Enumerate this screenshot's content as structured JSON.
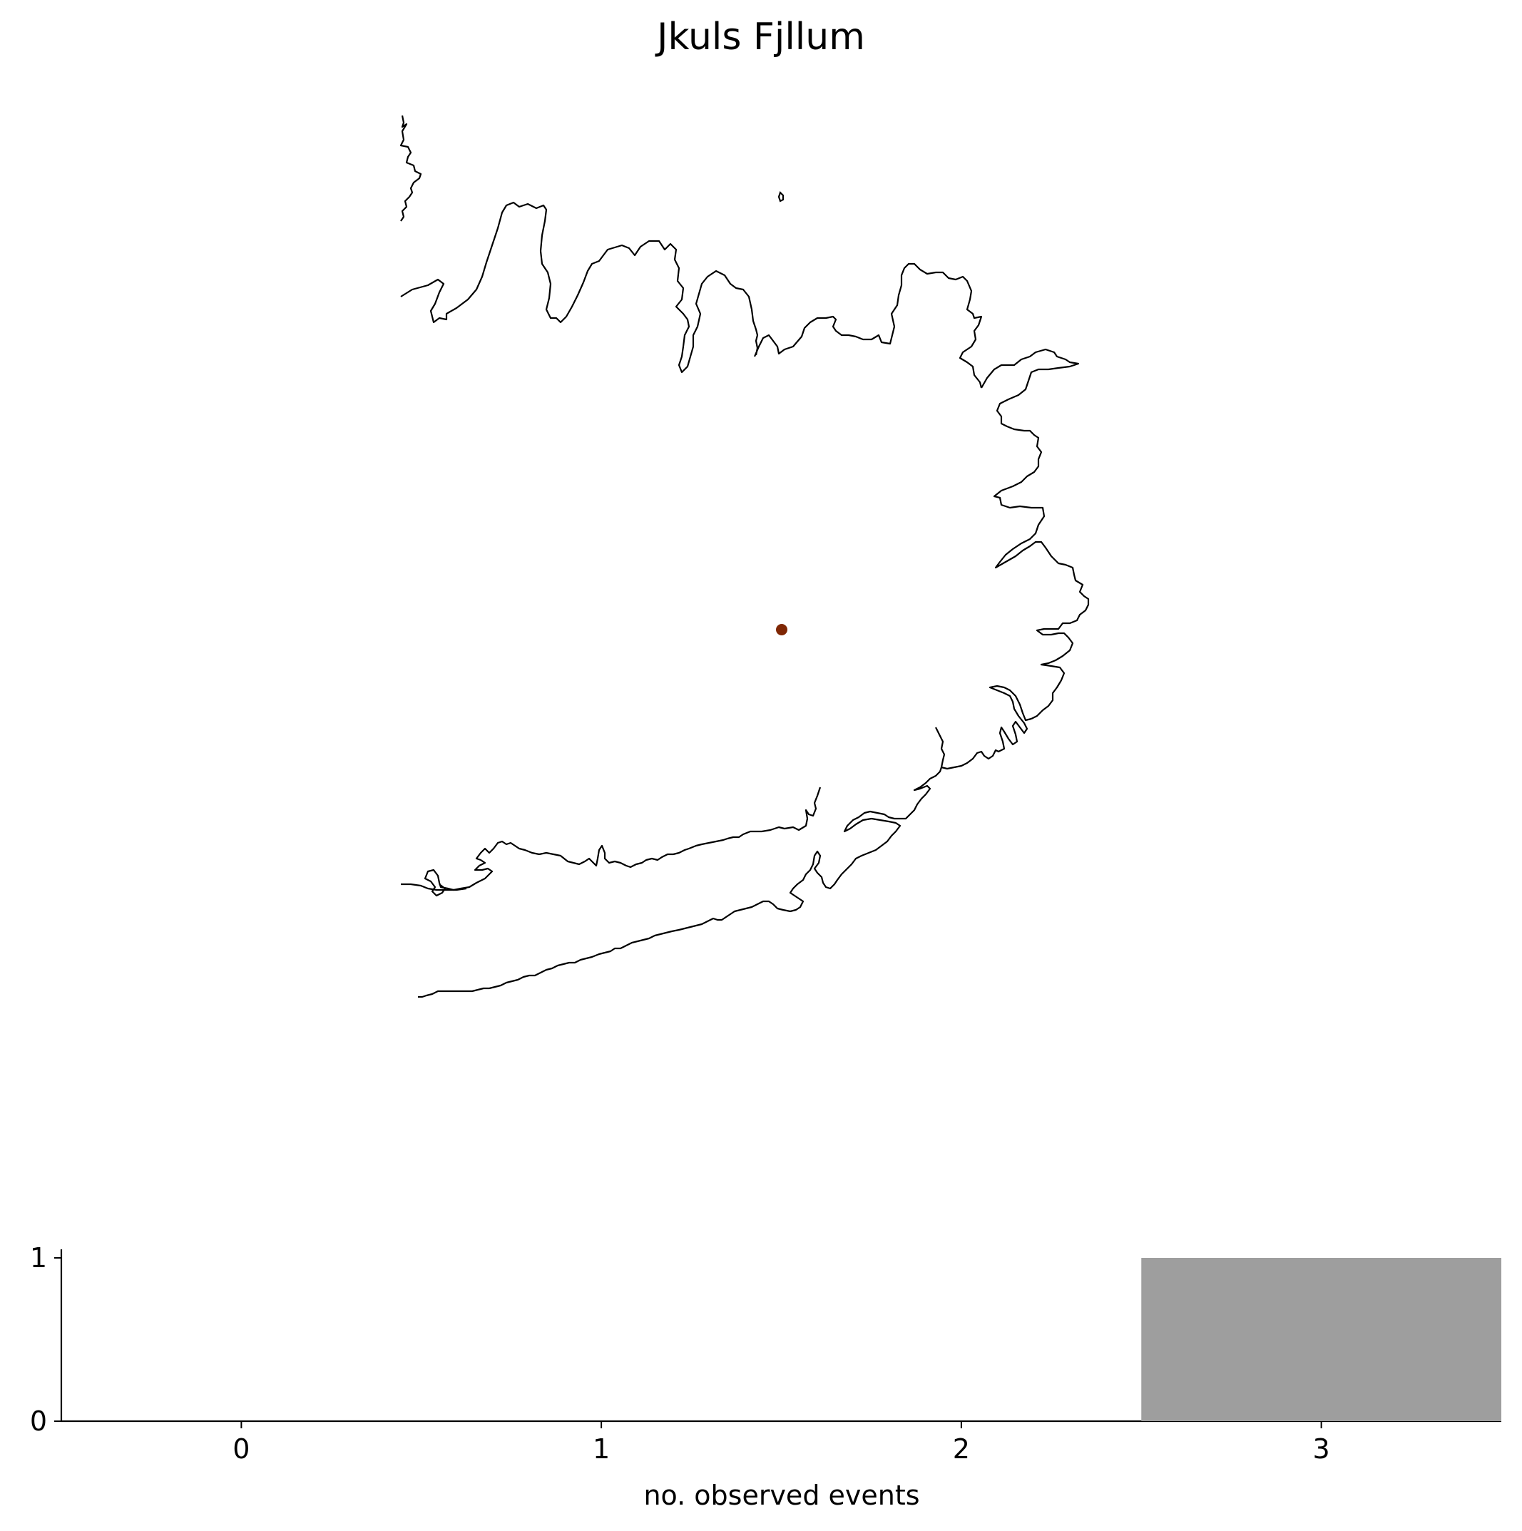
{
  "title": "Jkuls Fjllum",
  "map": {
    "point_color": "#7f2704",
    "coastline_color": "#000000"
  },
  "chart_data": {
    "type": "bar",
    "categories": [
      "0",
      "1",
      "2",
      "3"
    ],
    "x": [
      0,
      1,
      2,
      3
    ],
    "values": [
      0,
      0,
      0,
      1
    ],
    "bar_color": "#9e9e9e",
    "xlabel": "no. observed events",
    "ylabel": "",
    "xlim": [
      -0.5,
      3.5
    ],
    "ylim": [
      0,
      1
    ],
    "yticks": [
      0,
      1
    ],
    "grid": false
  }
}
